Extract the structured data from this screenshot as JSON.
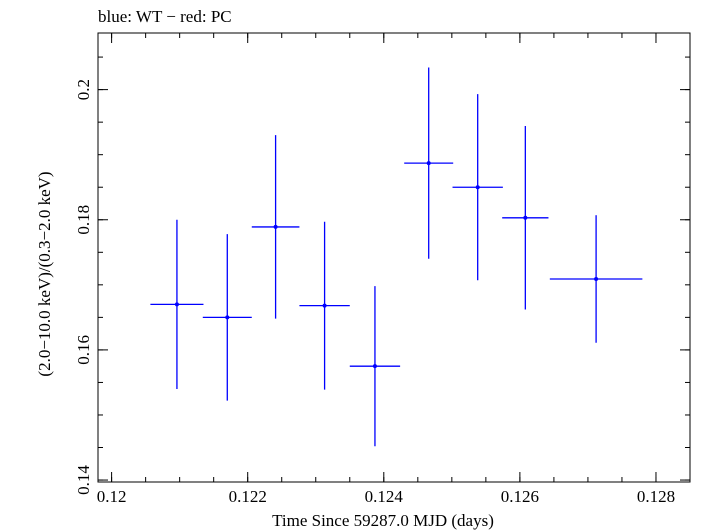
{
  "chart_data": {
    "type": "scatter",
    "title": "blue: WT − red: PC",
    "xlabel": "Time Since 59287.0 MJD (days)",
    "ylabel": "(2.0−10.0 keV)/(0.3−2.0 keV)",
    "xlim": [
      0.1198,
      0.1285
    ],
    "ylim": [
      0.1397,
      0.2087
    ],
    "xticks": [
      0.12,
      0.122,
      0.124,
      0.126,
      0.128
    ],
    "xtick_labels": [
      "0.12",
      "0.122",
      "0.124",
      "0.126",
      "0.128"
    ],
    "yticks": [
      0.14,
      0.16,
      0.18,
      0.2
    ],
    "ytick_labels": [
      "0.14",
      "0.16",
      "0.18",
      "0.2"
    ],
    "xminor_step": 0.0005,
    "yminor_step": 0.005,
    "grid": false,
    "series": [
      {
        "name": "WT",
        "color": "#0000ff",
        "points": [
          {
            "x": 0.12096,
            "xerr": 0.00039,
            "y": 0.167,
            "yerr": 0.013
          },
          {
            "x": 0.1217,
            "xerr": 0.00036,
            "y": 0.165,
            "yerr": 0.0128
          },
          {
            "x": 0.12241,
            "xerr": 0.00035,
            "y": 0.1789,
            "yerr": 0.0141
          },
          {
            "x": 0.12313,
            "xerr": 0.00037,
            "y": 0.1668,
            "yerr": 0.0129
          },
          {
            "x": 0.12387,
            "xerr": 0.00037,
            "y": 0.1575,
            "yerr": 0.0123
          },
          {
            "x": 0.12466,
            "xerr": 0.00036,
            "y": 0.1887,
            "yerr": 0.0147
          },
          {
            "x": 0.12538,
            "xerr": 0.00037,
            "y": 0.185,
            "yerr": 0.0143
          },
          {
            "x": 0.12608,
            "xerr": 0.00034,
            "y": 0.1803,
            "yerr": 0.0141
          },
          {
            "x": 0.12712,
            "xerr": 0.00068,
            "y": 0.1709,
            "yerr": 0.0098
          }
        ]
      }
    ]
  }
}
